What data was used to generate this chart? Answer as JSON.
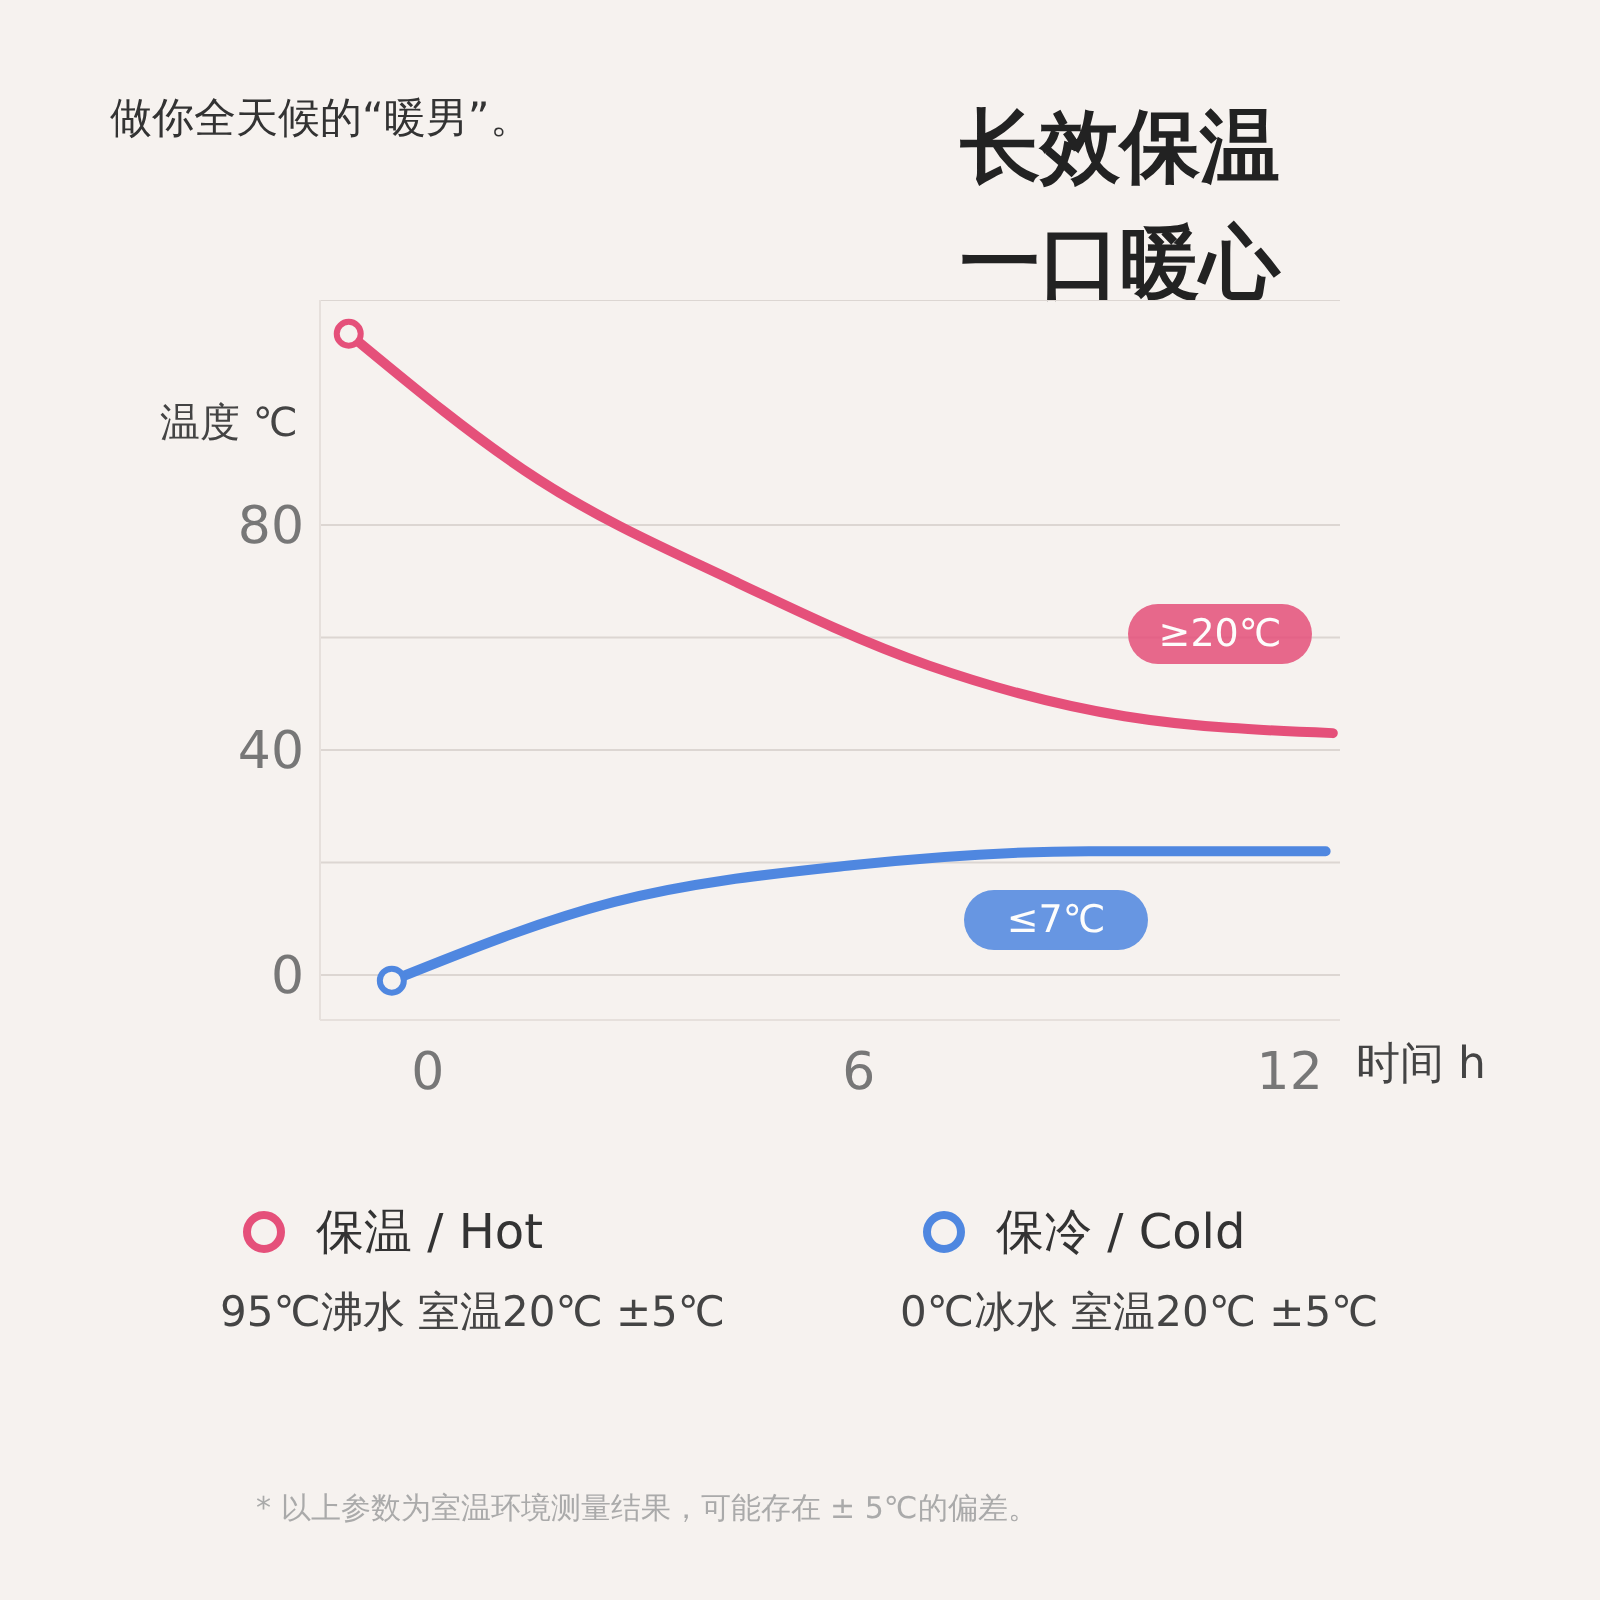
{
  "chart_data": {
    "type": "line",
    "title": "长效保温一口暖心",
    "subtitle": "做你全天候的“暖男”。",
    "xlabel": "时间 h",
    "ylabel": "温度 ℃",
    "xlim": [
      -1.5,
      12.7
    ],
    "xticks": [
      0,
      6,
      12
    ],
    "ylim": [
      -8,
      120
    ],
    "yticks": [
      0,
      {
        "value": 20,
        "label": null
      },
      40,
      {
        "value": 60,
        "label": null
      },
      80
    ],
    "grid": "y",
    "legend": "bottom",
    "line_style": "solid",
    "series": [
      {
        "name": "保温 / Hot",
        "color": "#e5507a",
        "x": [
          -1.1,
          1.55,
          4.27,
          6.98,
          9.7,
          12.6
        ],
        "values": [
          114,
          88,
          70,
          55,
          46,
          43
        ]
      },
      {
        "name": "保冷 / Cold",
        "color": "#4f87e0",
        "x": [
          -0.5,
          2.6,
          5.9,
          9.2,
          12.5
        ],
        "values": [
          -1,
          13,
          19.5,
          22,
          22
        ]
      }
    ],
    "annotations": [
      "95℃沸水 室温20℃ ±5℃",
      "0℃冰水 室温20℃ ±5℃",
      "* 以上参数为室温环境测量结果，可能存在 ± 5℃的偏差。",
      "≥20℃",
      "≤7℃"
    ]
  }
}
